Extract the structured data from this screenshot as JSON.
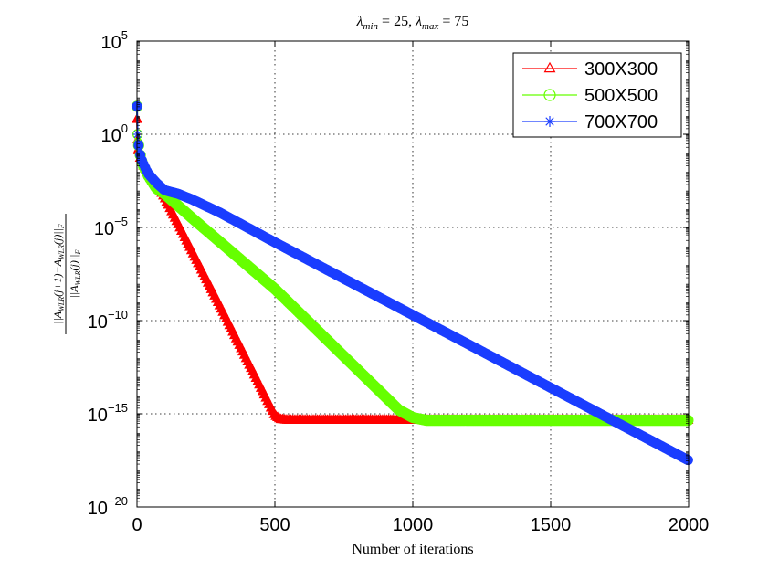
{
  "chart_data": {
    "type": "line",
    "title": "λmin = 25, λmax = 75",
    "xlabel": "Number of iterations",
    "ylabel": "||A_WLR(j+1) − A_WLR(j)||_F / ||A_WLR(j)||_F",
    "xlim": [
      0,
      2000
    ],
    "ylim_log10": [
      -20,
      5
    ],
    "y_scale": "log",
    "grid": true,
    "legend_position": "top-right",
    "x_ticks": [
      {
        "value": 0,
        "label": "0"
      },
      {
        "value": 500,
        "label": "500"
      },
      {
        "value": 1000,
        "label": "1000"
      },
      {
        "value": 1500,
        "label": "1500"
      },
      {
        "value": 2000,
        "label": "2000"
      }
    ],
    "y_ticks": [
      {
        "exp": 5,
        "base": "10",
        "sup": "5"
      },
      {
        "exp": 0,
        "base": "10",
        "sup": "0"
      },
      {
        "exp": -5,
        "base": "10",
        "sup": "−5"
      },
      {
        "exp": -10,
        "base": "10",
        "sup": "−10"
      },
      {
        "exp": -15,
        "base": "10",
        "sup": "−15"
      },
      {
        "exp": -20,
        "base": "10",
        "sup": "−20"
      }
    ],
    "series": [
      {
        "name": "300X300",
        "color": "#ff0000",
        "marker": "triangle",
        "x": [
          0,
          2,
          5,
          10,
          20,
          40,
          70,
          100,
          300,
          500,
          520,
          550,
          600,
          1000,
          1500,
          2000
        ],
        "log10_y": [
          0.8,
          -0.3,
          -0.8,
          -1.2,
          -1.6,
          -2.1,
          -2.7,
          -3.4,
          -9.2,
          -15.1,
          -15.3,
          -15.35,
          -15.35,
          -15.35,
          -15.35,
          -15.35
        ]
      },
      {
        "name": "500X500",
        "color": "#66ff00",
        "marker": "circle",
        "x": [
          0,
          2,
          5,
          10,
          20,
          40,
          70,
          100,
          200,
          500,
          950,
          1000,
          1050,
          1100,
          1500,
          2000
        ],
        "log10_y": [
          1.5,
          0.0,
          -0.5,
          -1.0,
          -1.6,
          -2.2,
          -2.9,
          -3.2,
          -4.5,
          -8.3,
          -14.8,
          -15.2,
          -15.35,
          -15.35,
          -15.35,
          -15.35
        ]
      },
      {
        "name": "700X700",
        "color": "#1a3dff",
        "marker": "star",
        "x": [
          0,
          2,
          5,
          10,
          20,
          40,
          70,
          100,
          150,
          200,
          300,
          500,
          1000,
          1500,
          2000
        ],
        "log10_y": [
          1.5,
          0.0,
          -0.5,
          -1.0,
          -1.5,
          -2.1,
          -2.6,
          -3.0,
          -3.2,
          -3.5,
          -4.2,
          -5.8,
          -9.7,
          -13.6,
          -17.5
        ]
      }
    ]
  }
}
